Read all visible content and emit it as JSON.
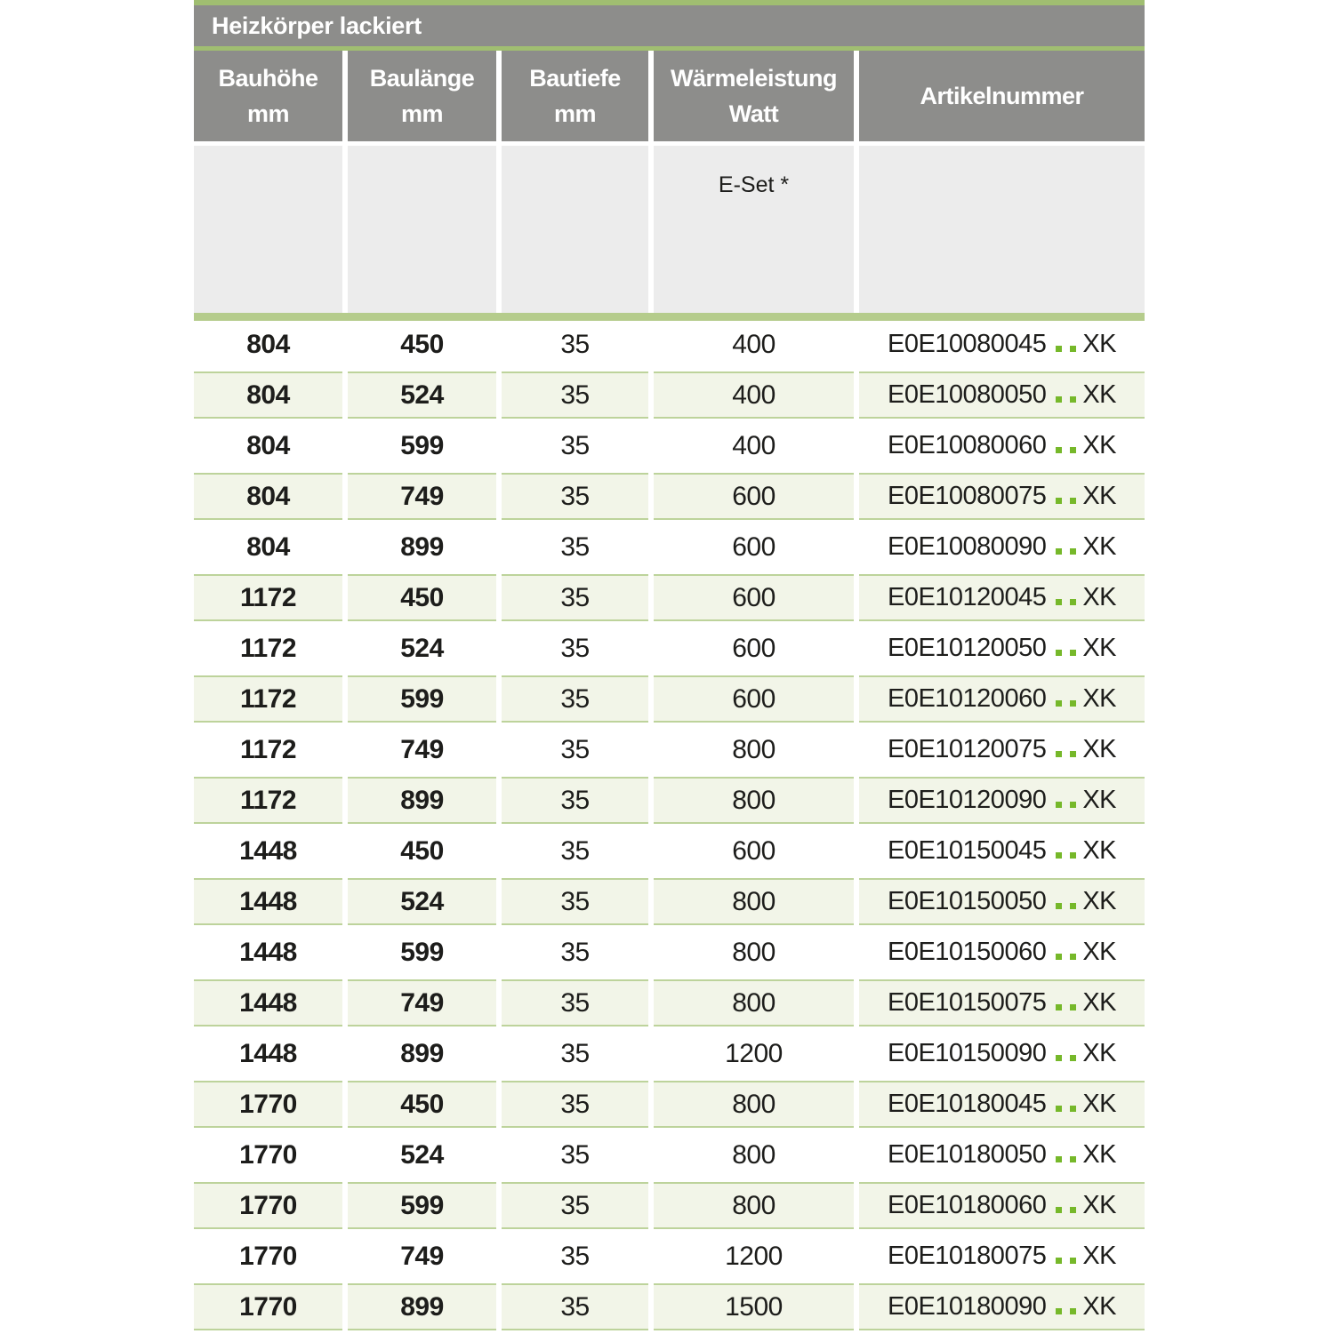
{
  "table": {
    "title": "Heizkörper lackiert",
    "columns": [
      {
        "line1": "Bauhöhe",
        "line2": "mm"
      },
      {
        "line1": "Baulänge",
        "line2": "mm"
      },
      {
        "line1": "Bautiefe",
        "line2": "mm"
      },
      {
        "line1": "Wärmeleistung",
        "line2": "Watt"
      },
      {
        "line1": "Artikelnummer",
        "line2": ""
      }
    ],
    "subheader": {
      "eset_label": "E-Set *"
    },
    "rows": [
      {
        "bauhoehe": "804",
        "baulaenge": "450",
        "bautiefe": "35",
        "watt": "400",
        "artikel_code": "E0E10080045",
        "artikel_dots": "..",
        "artikel_suffix": "XK"
      },
      {
        "bauhoehe": "804",
        "baulaenge": "524",
        "bautiefe": "35",
        "watt": "400",
        "artikel_code": "E0E10080050",
        "artikel_dots": "..",
        "artikel_suffix": "XK"
      },
      {
        "bauhoehe": "804",
        "baulaenge": "599",
        "bautiefe": "35",
        "watt": "400",
        "artikel_code": "E0E10080060",
        "artikel_dots": "..",
        "artikel_suffix": "XK"
      },
      {
        "bauhoehe": "804",
        "baulaenge": "749",
        "bautiefe": "35",
        "watt": "600",
        "artikel_code": "E0E10080075",
        "artikel_dots": "..",
        "artikel_suffix": "XK"
      },
      {
        "bauhoehe": "804",
        "baulaenge": "899",
        "bautiefe": "35",
        "watt": "600",
        "artikel_code": "E0E10080090",
        "artikel_dots": "..",
        "artikel_suffix": "XK"
      },
      {
        "bauhoehe": "1172",
        "baulaenge": "450",
        "bautiefe": "35",
        "watt": "600",
        "artikel_code": "E0E10120045",
        "artikel_dots": "..",
        "artikel_suffix": "XK"
      },
      {
        "bauhoehe": "1172",
        "baulaenge": "524",
        "bautiefe": "35",
        "watt": "600",
        "artikel_code": "E0E10120050",
        "artikel_dots": "..",
        "artikel_suffix": "XK"
      },
      {
        "bauhoehe": "1172",
        "baulaenge": "599",
        "bautiefe": "35",
        "watt": "600",
        "artikel_code": "E0E10120060",
        "artikel_dots": "..",
        "artikel_suffix": "XK"
      },
      {
        "bauhoehe": "1172",
        "baulaenge": "749",
        "bautiefe": "35",
        "watt": "800",
        "artikel_code": "E0E10120075",
        "artikel_dots": "..",
        "artikel_suffix": "XK"
      },
      {
        "bauhoehe": "1172",
        "baulaenge": "899",
        "bautiefe": "35",
        "watt": "800",
        "artikel_code": "E0E10120090",
        "artikel_dots": "..",
        "artikel_suffix": "XK"
      },
      {
        "bauhoehe": "1448",
        "baulaenge": "450",
        "bautiefe": "35",
        "watt": "600",
        "artikel_code": "E0E10150045",
        "artikel_dots": "..",
        "artikel_suffix": "XK"
      },
      {
        "bauhoehe": "1448",
        "baulaenge": "524",
        "bautiefe": "35",
        "watt": "800",
        "artikel_code": "E0E10150050",
        "artikel_dots": "..",
        "artikel_suffix": "XK"
      },
      {
        "bauhoehe": "1448",
        "baulaenge": "599",
        "bautiefe": "35",
        "watt": "800",
        "artikel_code": "E0E10150060",
        "artikel_dots": "..",
        "artikel_suffix": "XK"
      },
      {
        "bauhoehe": "1448",
        "baulaenge": "749",
        "bautiefe": "35",
        "watt": "800",
        "artikel_code": "E0E10150075",
        "artikel_dots": "..",
        "artikel_suffix": "XK"
      },
      {
        "bauhoehe": "1448",
        "baulaenge": "899",
        "bautiefe": "35",
        "watt": "1200",
        "artikel_code": "E0E10150090",
        "artikel_dots": "..",
        "artikel_suffix": "XK"
      },
      {
        "bauhoehe": "1770",
        "baulaenge": "450",
        "bautiefe": "35",
        "watt": "800",
        "artikel_code": "E0E10180045",
        "artikel_dots": "..",
        "artikel_suffix": "XK"
      },
      {
        "bauhoehe": "1770",
        "baulaenge": "524",
        "bautiefe": "35",
        "watt": "800",
        "artikel_code": "E0E10180050",
        "artikel_dots": "..",
        "artikel_suffix": "XK"
      },
      {
        "bauhoehe": "1770",
        "baulaenge": "599",
        "bautiefe": "35",
        "watt": "800",
        "artikel_code": "E0E10180060",
        "artikel_dots": "..",
        "artikel_suffix": "XK"
      },
      {
        "bauhoehe": "1770",
        "baulaenge": "749",
        "bautiefe": "35",
        "watt": "1200",
        "artikel_code": "E0E10180075",
        "artikel_dots": "..",
        "artikel_suffix": "XK"
      },
      {
        "bauhoehe": "1770",
        "baulaenge": "899",
        "bautiefe": "35",
        "watt": "1500",
        "artikel_code": "E0E10180090",
        "artikel_dots": "..",
        "artikel_suffix": "XK"
      }
    ]
  },
  "colors": {
    "header_gray": "#8d8d8b",
    "subheader_gray": "#ececec",
    "accent_green": "#a0be71",
    "separator_green": "#b5cc8c",
    "row_green_bg": "#f2f5e8",
    "row_green_border": "#bdd39b",
    "dots_green": "#76b82a",
    "text_dark": "#1d1d1b",
    "header_text": "#ffffff"
  }
}
